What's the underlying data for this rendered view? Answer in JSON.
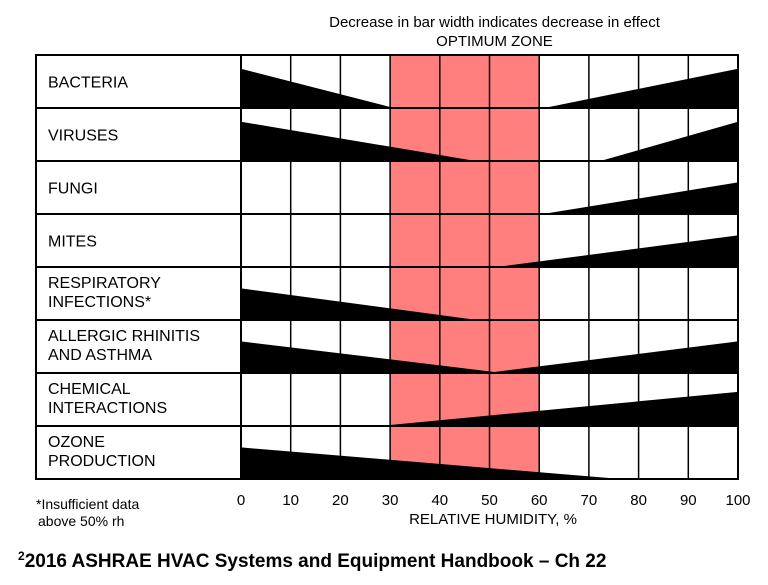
{
  "chart_data": {
    "type": "range-bar",
    "title": "Decrease in bar width indicates decrease in effect",
    "subtitle": "OPTIMUM ZONE",
    "optimum_zone": [
      30,
      60
    ],
    "optimum_color": "#ff7f7f",
    "bar_color": "#000000",
    "xlabel": "RELATIVE HUMIDITY, %",
    "xlim": [
      0,
      100
    ],
    "x_ticks": [
      "0",
      "10",
      "20",
      "30",
      "40",
      "50",
      "60",
      "70",
      "80",
      "90",
      "100"
    ],
    "rows": [
      {
        "label": [
          "BACTERIA"
        ],
        "low": {
          "start": 0,
          "end": 30,
          "width": 0.75
        },
        "high": {
          "start": 62,
          "end": 100,
          "width": 0.75
        }
      },
      {
        "label": [
          "VIRUSES"
        ],
        "low": {
          "start": 0,
          "end": 46,
          "width": 0.75
        },
        "high": {
          "start": 73,
          "end": 100,
          "width": 0.75
        }
      },
      {
        "label": [
          "FUNGI"
        ],
        "low": null,
        "high": {
          "start": 62,
          "end": 100,
          "width": 0.6
        }
      },
      {
        "label": [
          "MITES"
        ],
        "low": null,
        "high": {
          "start": 53,
          "end": 100,
          "width": 0.6
        }
      },
      {
        "label": [
          "RESPIRATORY",
          "INFECTIONS*"
        ],
        "low": {
          "start": 0,
          "end": 46,
          "width": 0.6
        },
        "high": null
      },
      {
        "label": [
          "ALLERGIC RHINITIS",
          "AND ASTHMA"
        ],
        "low": {
          "start": 0,
          "end": 51,
          "width": 0.6
        },
        "high": {
          "start": 51,
          "end": 100,
          "width": 0.6
        }
      },
      {
        "label": [
          "CHEMICAL",
          "INTERACTIONS"
        ],
        "low": null,
        "high": {
          "start": 30,
          "end": 100,
          "width": 0.65
        }
      },
      {
        "label": [
          "OZONE",
          "PRODUCTION"
        ],
        "low": {
          "start": 0,
          "end": 74,
          "width": 0.6
        },
        "high": null
      }
    ],
    "footnote": [
      "*Insufficient data",
      "above 50% rh"
    ]
  },
  "citation": {
    "superscript": "2",
    "text": "2016 ASHRAE HVAC Systems and Equipment Handbook – Ch 22"
  }
}
